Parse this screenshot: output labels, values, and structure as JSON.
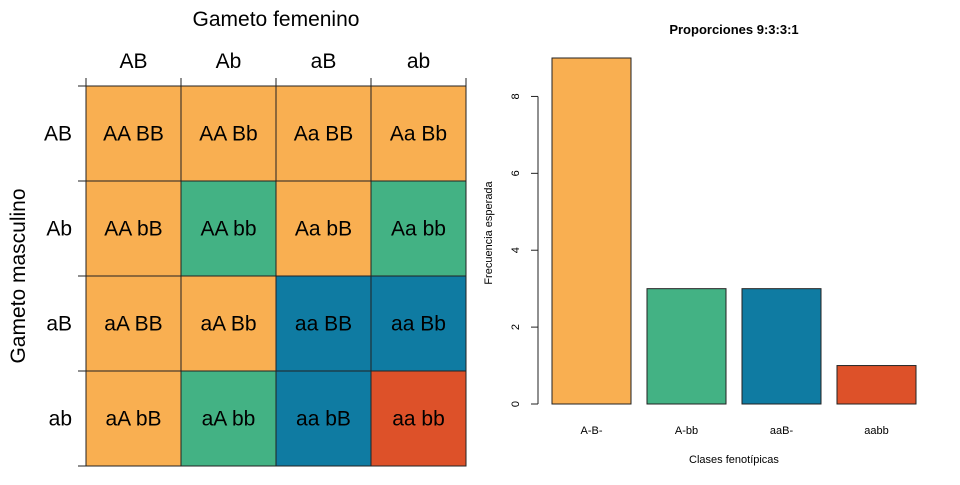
{
  "chart_data": [
    {
      "type": "table",
      "xlabel": "Gameto femenino",
      "ylabel": "Gameto masculino",
      "columns": [
        "AB",
        "Ab",
        "aB",
        "ab"
      ],
      "rows": [
        "AB",
        "Ab",
        "aB",
        "ab"
      ],
      "cells": [
        [
          "AA BB",
          "AA Bb",
          "Aa BB",
          "Aa Bb"
        ],
        [
          "AA bB",
          "AA bb",
          "Aa bB",
          "Aa bb"
        ],
        [
          "aA BB",
          "aA Bb",
          "aa BB",
          "aa Bb"
        ],
        [
          "aA bB",
          "aA bb",
          "aa bB",
          "aa bb"
        ]
      ],
      "cell_class": [
        [
          "A-B-",
          "A-B-",
          "A-B-",
          "A-B-"
        ],
        [
          "A-B-",
          "A-bb",
          "A-B-",
          "A-bb"
        ],
        [
          "A-B-",
          "A-B-",
          "aaB-",
          "aaB-"
        ],
        [
          "A-B-",
          "A-bb",
          "aaB-",
          "aabb"
        ]
      ],
      "class_colors": {
        "A-B-": "#F9AF51",
        "A-bb": "#43B284",
        "aaB-": "#0F7BA2",
        "aabb": "#DD5129"
      }
    },
    {
      "type": "bar",
      "title": "Proporciones 9:3:3:1",
      "xlabel": "Clases fenotípicas",
      "ylabel": "Frecuencia esperada",
      "categories": [
        "A-B-",
        "A-bb",
        "aaB-",
        "aabb"
      ],
      "values": [
        9,
        3,
        3,
        1
      ],
      "colors": [
        "#F9AF51",
        "#43B284",
        "#0F7BA2",
        "#DD5129"
      ],
      "ylim": [
        0,
        9
      ],
      "yticks": [
        0,
        2,
        4,
        6,
        8
      ],
      "grid": false,
      "legend": "none"
    }
  ]
}
